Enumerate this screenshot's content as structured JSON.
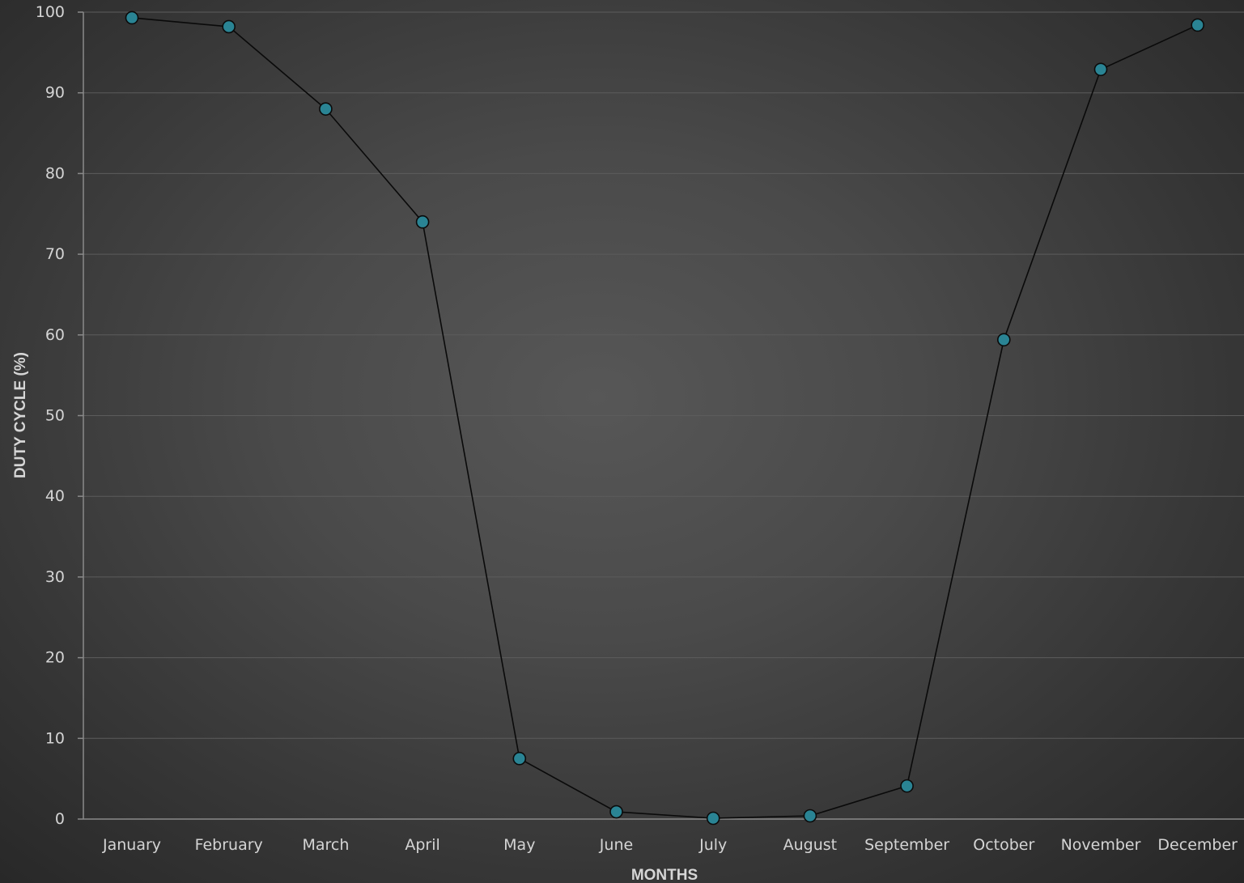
{
  "chart_data": {
    "type": "line",
    "title": "",
    "xlabel": "MONTHS",
    "ylabel": "DUTY CYCLE (%)",
    "categories": [
      "January",
      "February",
      "March",
      "April",
      "May",
      "June",
      "July",
      "August",
      "September",
      "October",
      "November",
      "December"
    ],
    "series": [
      {
        "values": [
          99.3,
          98.2,
          88.0,
          74.0,
          7.5,
          0.9,
          0.1,
          0.4,
          4.1,
          59.4,
          92.9,
          98.4
        ],
        "color": "#2a8494"
      }
    ],
    "ylim": [
      0,
      100
    ],
    "yticks": [
      0,
      10,
      20,
      30,
      40,
      50,
      60,
      70,
      80,
      90,
      100
    ],
    "grid": true,
    "legend": "none"
  }
}
